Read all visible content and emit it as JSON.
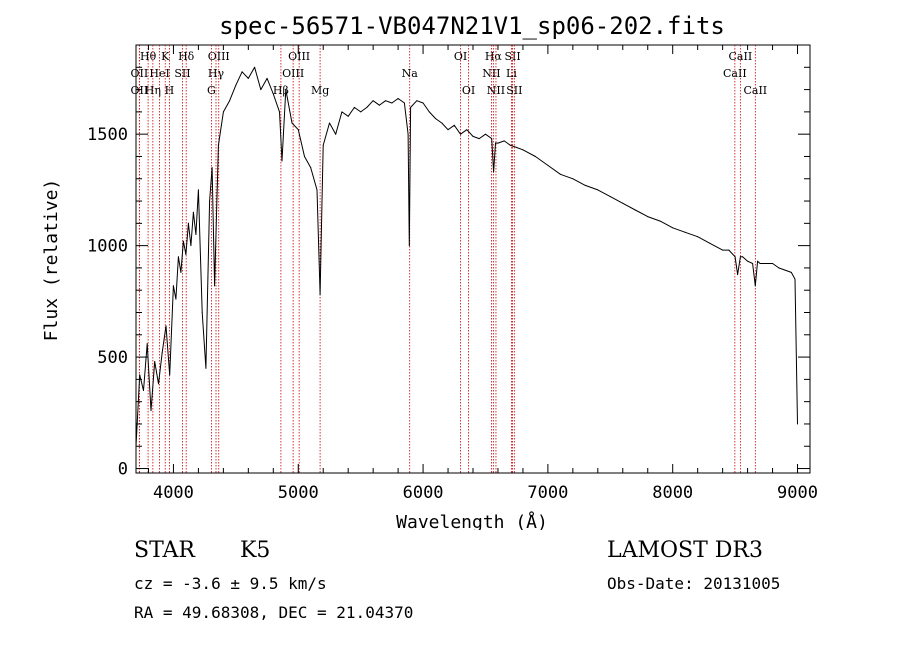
{
  "chart_data": {
    "type": "line",
    "title": "spec-56571-VB047N21V1_sp06-202.fits",
    "xlabel": "Wavelength (Å)",
    "ylabel": "Flux (relative)",
    "xlim": [
      3700,
      9100
    ],
    "ylim": [
      -20,
      1900
    ],
    "xticks": [
      4000,
      5000,
      6000,
      7000,
      8000,
      9000
    ],
    "xtick_labels": [
      "4000",
      "5000",
      "6000",
      "7000",
      "8000",
      "9000"
    ],
    "yticks": [
      0,
      500,
      1000,
      1500
    ],
    "ytick_labels": [
      "0",
      "500",
      "1000",
      "1500"
    ],
    "series": [
      {
        "name": "spectrum",
        "x": [
          3700,
          3730,
          3760,
          3790,
          3820,
          3850,
          3880,
          3910,
          3940,
          3970,
          4000,
          4020,
          4040,
          4060,
          4080,
          4100,
          4120,
          4140,
          4160,
          4180,
          4200,
          4230,
          4260,
          4290,
          4310,
          4330,
          4360,
          4400,
          4450,
          4500,
          4550,
          4600,
          4650,
          4700,
          4750,
          4800,
          4850,
          4870,
          4900,
          4950,
          5000,
          5050,
          5100,
          5150,
          5175,
          5190,
          5200,
          5250,
          5300,
          5350,
          5400,
          5450,
          5500,
          5550,
          5600,
          5650,
          5700,
          5750,
          5800,
          5850,
          5880,
          5890,
          5900,
          5950,
          6000,
          6050,
          6100,
          6150,
          6200,
          6250,
          6300,
          6350,
          6400,
          6450,
          6500,
          6550,
          6565,
          6580,
          6600,
          6650,
          6700,
          6750,
          6800,
          6900,
          7000,
          7100,
          7200,
          7300,
          7400,
          7500,
          7600,
          7700,
          7800,
          7900,
          8000,
          8100,
          8200,
          8300,
          8400,
          8450,
          8500,
          8520,
          8542,
          8560,
          8600,
          8640,
          8662,
          8680,
          8700,
          8750,
          8800,
          8850,
          8900,
          8950,
          8980,
          9000
        ],
        "y": [
          100,
          420,
          350,
          560,
          260,
          480,
          380,
          520,
          640,
          420,
          820,
          760,
          950,
          880,
          1020,
          960,
          1100,
          1000,
          1150,
          1050,
          1250,
          700,
          450,
          1200,
          1350,
          820,
          1450,
          1600,
          1650,
          1720,
          1780,
          1750,
          1800,
          1700,
          1750,
          1680,
          1600,
          1380,
          1700,
          1550,
          1520,
          1400,
          1350,
          1250,
          780,
          1200,
          1450,
          1550,
          1500,
          1600,
          1580,
          1620,
          1600,
          1620,
          1650,
          1630,
          1650,
          1640,
          1660,
          1640,
          1500,
          1000,
          1620,
          1650,
          1640,
          1600,
          1570,
          1550,
          1520,
          1540,
          1500,
          1520,
          1490,
          1480,
          1500,
          1480,
          1330,
          1460,
          1460,
          1470,
          1450,
          1440,
          1430,
          1400,
          1360,
          1320,
          1300,
          1270,
          1250,
          1220,
          1190,
          1160,
          1130,
          1110,
          1080,
          1060,
          1040,
          1010,
          980,
          980,
          950,
          870,
          950,
          950,
          930,
          920,
          820,
          930,
          920,
          920,
          920,
          900,
          890,
          880,
          850,
          200
        ]
      }
    ],
    "line_markers": [
      {
        "label": "Hθ",
        "wavelength": 3797,
        "row": 1
      },
      {
        "label": "OII",
        "wavelength": 3727,
        "row": 2
      },
      {
        "label": "OII",
        "wavelength": 3727,
        "row": 3
      },
      {
        "label": "K",
        "wavelength": 3934,
        "row": 1
      },
      {
        "label": "HeI",
        "wavelength": 3889,
        "row": 2
      },
      {
        "label": "Hη",
        "wavelength": 3835,
        "row": 3
      },
      {
        "label": "Hδ",
        "wavelength": 4102,
        "row": 1
      },
      {
        "label": "SII",
        "wavelength": 4072,
        "row": 2
      },
      {
        "label": "H",
        "wavelength": 3968,
        "row": 3
      },
      {
        "label": "OIII",
        "wavelength": 4363,
        "row": 1
      },
      {
        "label": "Hγ",
        "wavelength": 4341,
        "row": 2
      },
      {
        "label": "G",
        "wavelength": 4304,
        "row": 3
      },
      {
        "label": "Hβ",
        "wavelength": 4861,
        "row": 3
      },
      {
        "label": "OIII",
        "wavelength": 5007,
        "row": 1
      },
      {
        "label": "OIII",
        "wavelength": 4959,
        "row": 2
      },
      {
        "label": "Mg",
        "wavelength": 5175,
        "row": 3
      },
      {
        "label": "Na",
        "wavelength": 5893,
        "row": 2
      },
      {
        "label": "OI",
        "wavelength": 6300,
        "row": 1
      },
      {
        "label": "OI",
        "wavelength": 6364,
        "row": 3
      },
      {
        "label": "Hα",
        "wavelength": 6563,
        "row": 1
      },
      {
        "label": "NII",
        "wavelength": 6548,
        "row": 2
      },
      {
        "label": "NII",
        "wavelength": 6584,
        "row": 3
      },
      {
        "label": "SII",
        "wavelength": 6717,
        "row": 1
      },
      {
        "label": "Li",
        "wavelength": 6708,
        "row": 2
      },
      {
        "label": "SII",
        "wavelength": 6731,
        "row": 3
      },
      {
        "label": "CaII",
        "wavelength": 8542,
        "row": 1
      },
      {
        "label": "CaII",
        "wavelength": 8498,
        "row": 2
      },
      {
        "label": "CaII",
        "wavelength": 8662,
        "row": 3
      }
    ]
  },
  "footer": {
    "object_class": "STAR",
    "subclass": "K5",
    "survey": "LAMOST DR3",
    "cz": "cz = -3.6 ± 9.5 km/s",
    "obs_date": "Obs-Date: 20131005",
    "radec": "RA =  49.68308, DEC =  21.04370"
  },
  "colors": {
    "spectrum": "#000000",
    "marker_line": "#cc0000",
    "axis": "#000000",
    "background": "#ffffff"
  }
}
